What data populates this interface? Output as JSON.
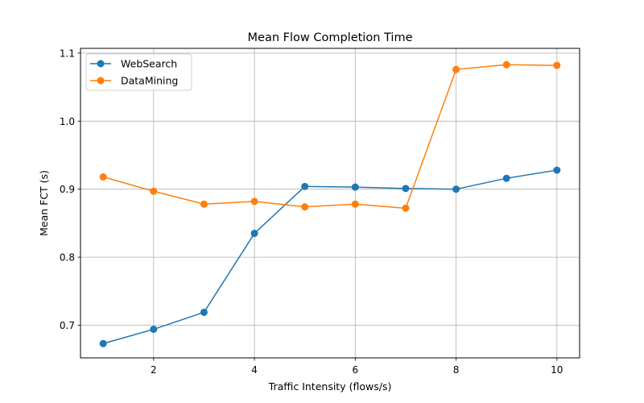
{
  "chart_data": {
    "type": "line",
    "title": "Mean Flow Completion Time",
    "xlabel": "Traffic Intensity (flows/s)",
    "ylabel": "Mean FCT (s)",
    "x": [
      1,
      2,
      3,
      4,
      5,
      6,
      7,
      8,
      9,
      10
    ],
    "xlim": [
      0.55,
      10.45
    ],
    "ylim": [
      0.652,
      1.107
    ],
    "xticks": [
      2,
      4,
      6,
      8,
      10
    ],
    "yticks": [
      0.7,
      0.8,
      0.9,
      1.0,
      1.1
    ],
    "xtick_labels": [
      "2",
      "4",
      "6",
      "8",
      "10"
    ],
    "ytick_labels": [
      "0.7",
      "0.8",
      "0.9",
      "1.0",
      "1.1"
    ],
    "grid": true,
    "legend_position": "top-left",
    "series": [
      {
        "name": "WebSearch",
        "color": "#1f77b4",
        "marker": "circle",
        "values": [
          0.673,
          0.694,
          0.719,
          0.835,
          0.904,
          0.903,
          0.901,
          0.9,
          0.916,
          0.928
        ]
      },
      {
        "name": "DataMining",
        "color": "#ff7f0e",
        "marker": "circle",
        "values": [
          0.918,
          0.897,
          0.878,
          0.882,
          0.874,
          0.878,
          0.872,
          1.076,
          1.083,
          1.082
        ]
      }
    ]
  }
}
